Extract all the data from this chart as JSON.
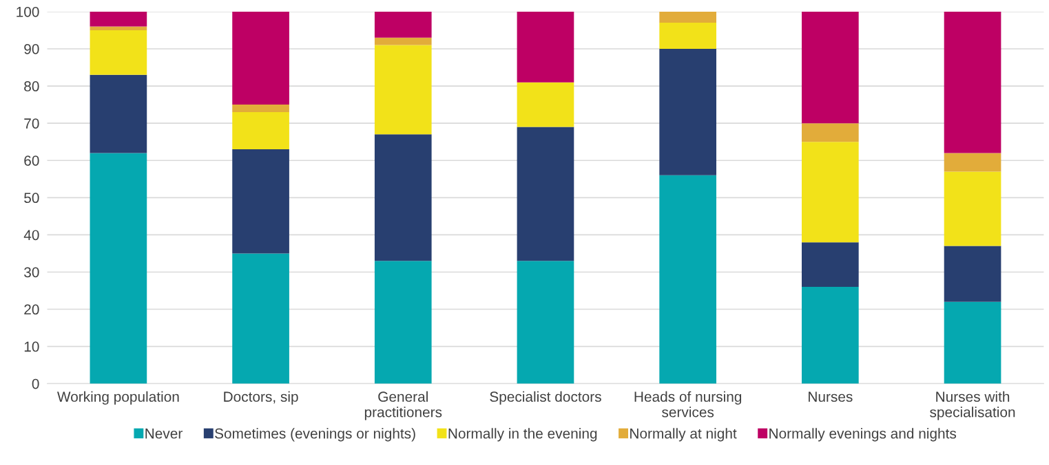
{
  "chart_data": {
    "type": "bar",
    "stacked": true,
    "categories": [
      "Working population",
      "Doctors, sip",
      "General\npractitioners",
      "Specialist doctors",
      "Heads of nursing\nservices",
      "Nurses",
      "Nurses with\nspecialisation"
    ],
    "series": [
      {
        "name": "Never",
        "color": "#05a8b0",
        "values": [
          62,
          35,
          33,
          33,
          56,
          26,
          22
        ]
      },
      {
        "name": "Sometimes (evenings or nights)",
        "color": "#283f70",
        "values": [
          21,
          28,
          34,
          36,
          34,
          12,
          15
        ]
      },
      {
        "name": "Normally in the evening",
        "color": "#f2e219",
        "values": [
          12,
          10,
          24,
          12,
          7,
          27,
          20
        ]
      },
      {
        "name": "Normally at night",
        "color": "#e2ac3a",
        "values": [
          1,
          2,
          2,
          0,
          3,
          5,
          5
        ]
      },
      {
        "name": "Normally evenings and nights",
        "color": "#be0064",
        "values": [
          4,
          25,
          7,
          19,
          0,
          30,
          38
        ]
      }
    ],
    "ylim": [
      0,
      100
    ],
    "yticks": [
      0,
      10,
      20,
      30,
      40,
      50,
      60,
      70,
      80,
      90,
      100
    ],
    "grid": "y",
    "legend": "bottom"
  }
}
